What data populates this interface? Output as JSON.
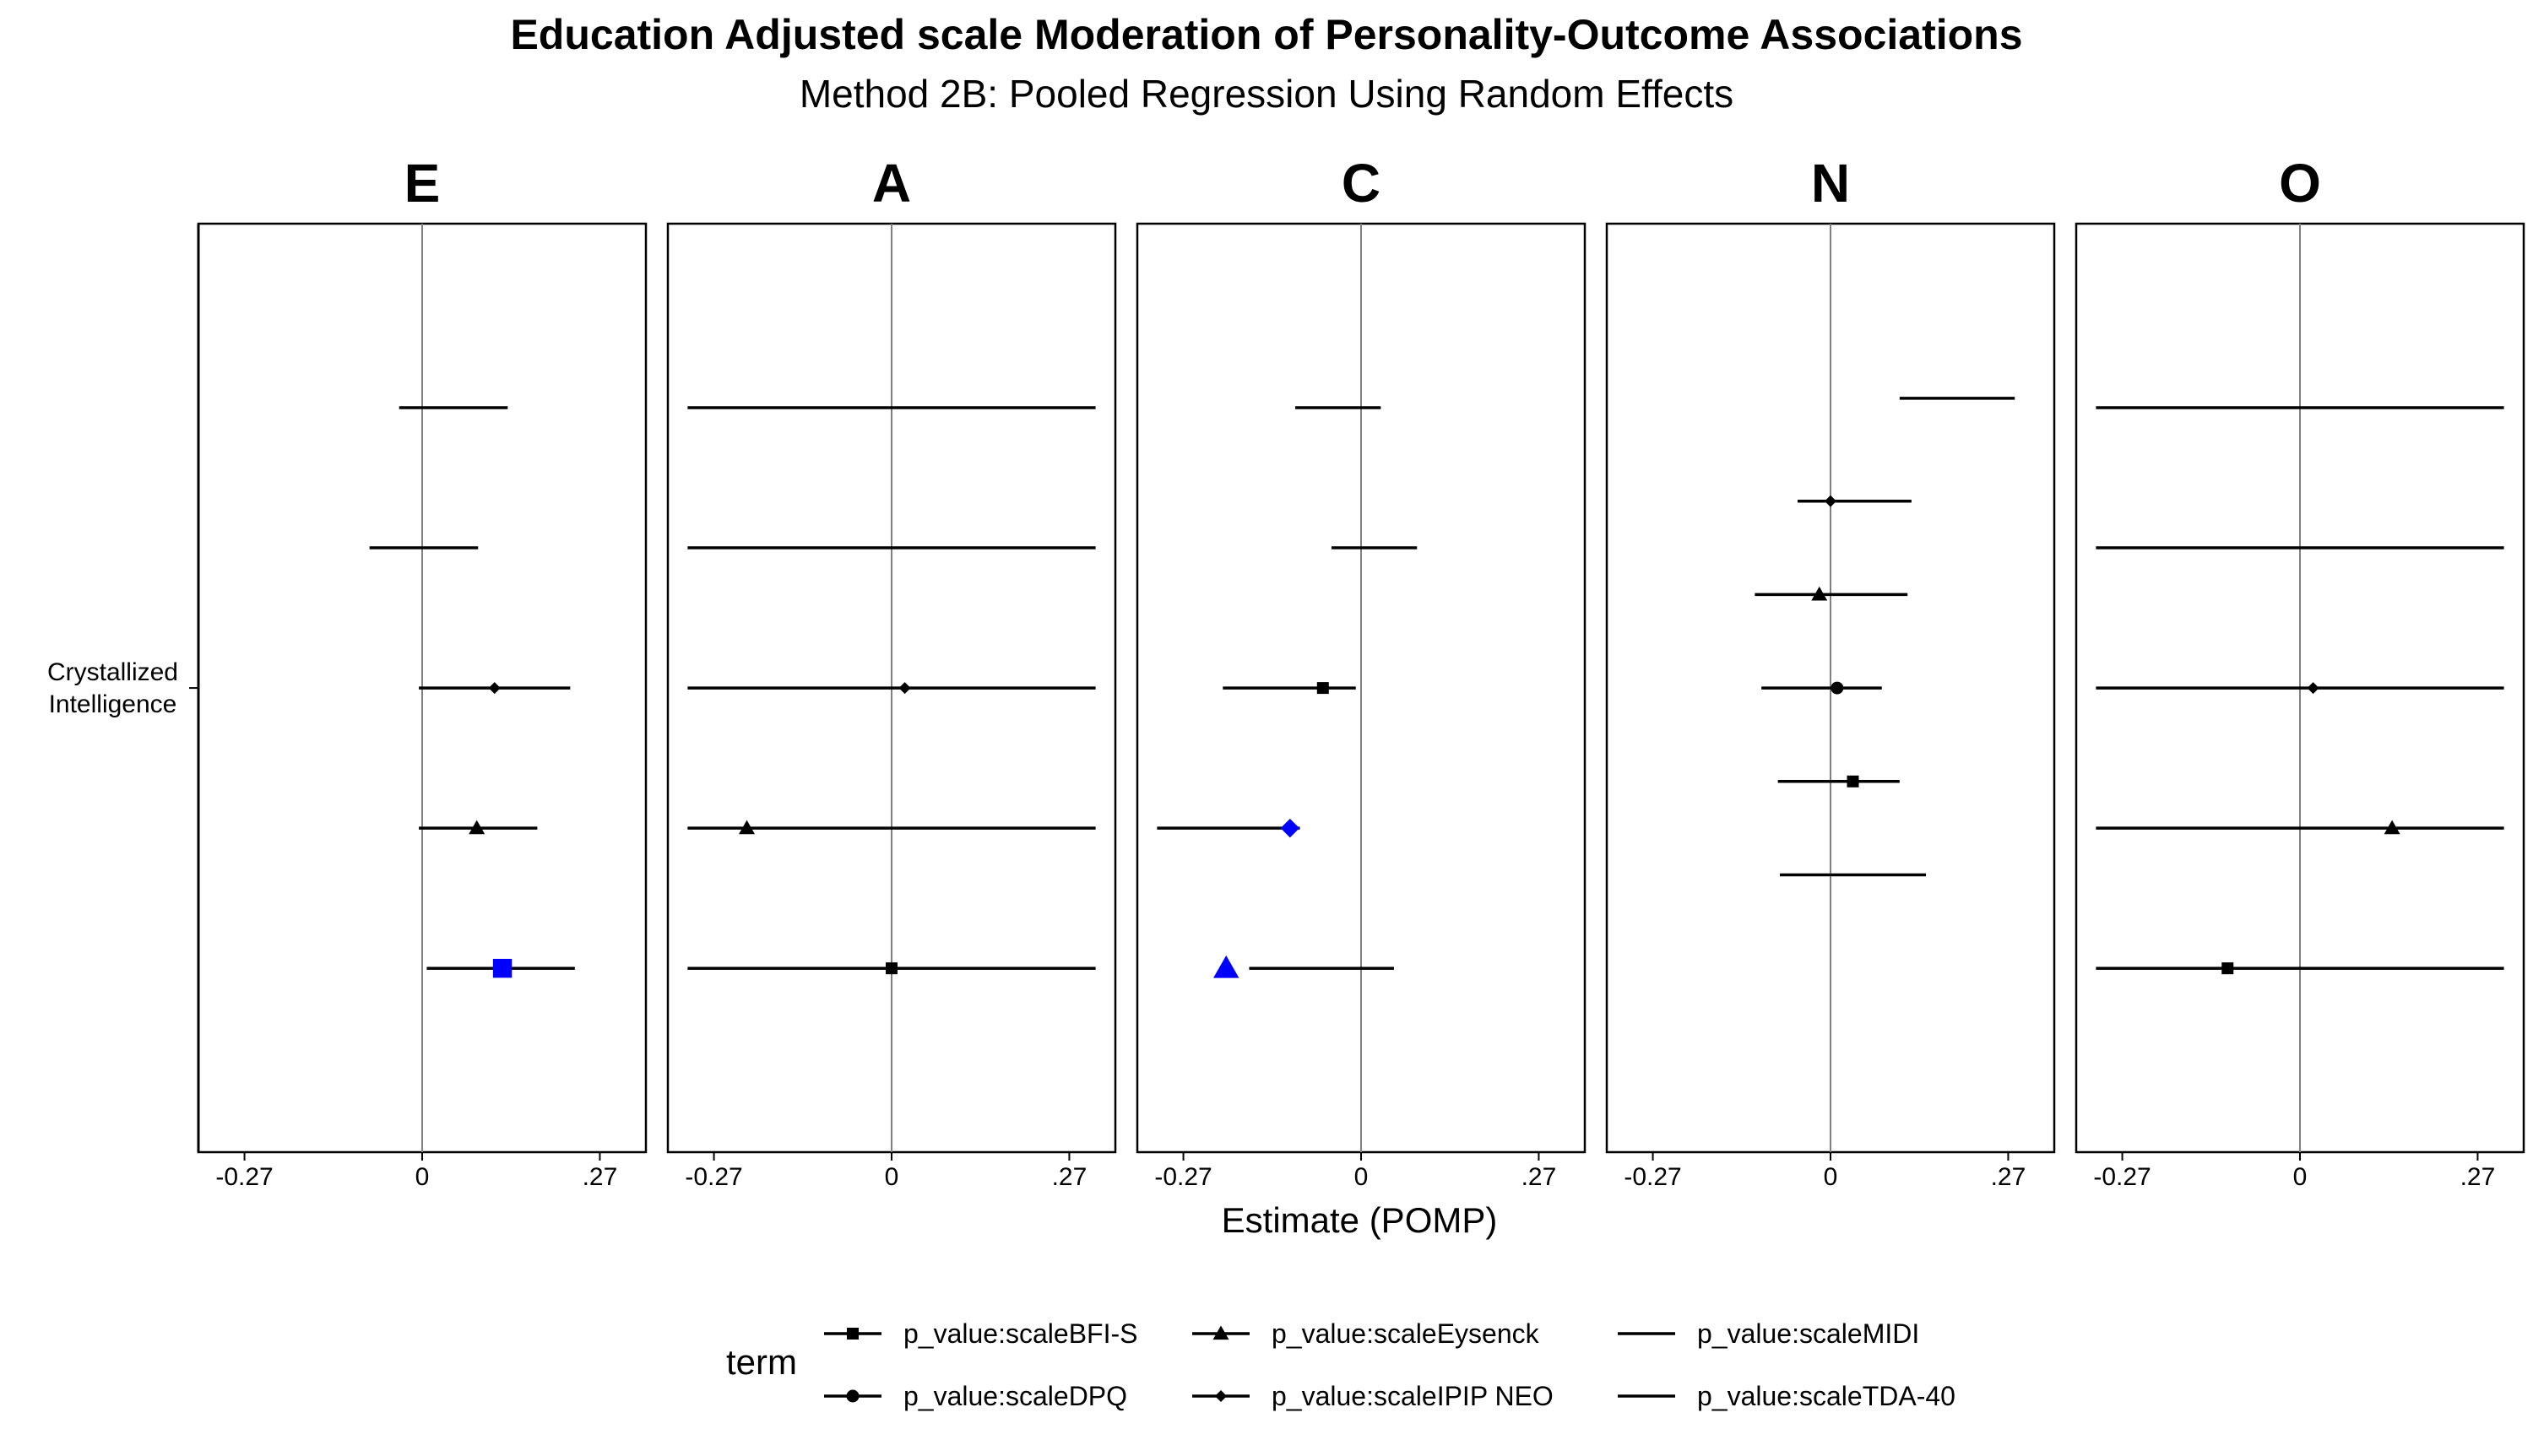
{
  "title": "Education Adjusted scale Moderation of Personality-Outcome Associations",
  "subtitle": "Method 2B: Pooled Regression Using Random Effects",
  "colors": {
    "significant": "#0000ff",
    "default": "#000000",
    "zero_line": "#808080"
  },
  "chart_data": {
    "type": "forest",
    "facets": [
      "E",
      "A",
      "C",
      "N",
      "O"
    ],
    "y_categories": [
      "Crystallized\nIntelligence"
    ],
    "xlabel": "Estimate (POMP)",
    "xticks": [
      -0.27,
      0,
      0.27
    ],
    "xtick_labels": [
      "-0.27",
      "0",
      ".27"
    ],
    "xlim": [
      -0.34,
      0.34
    ],
    "legend": {
      "title": "term",
      "entries": [
        {
          "label": "p_value:scaleBFI-S",
          "shape": "square"
        },
        {
          "label": "p_value:scaleDPQ",
          "shape": "circle"
        },
        {
          "label": "p_value:scaleEysenck",
          "shape": "triangle"
        },
        {
          "label": "p_value:scaleIPIP NEO",
          "shape": "diamond"
        },
        {
          "label": "p_value:scaleMIDI",
          "shape": "none"
        },
        {
          "label": "p_value:scaleTDA-40",
          "shape": "none"
        }
      ]
    },
    "panels": [
      {
        "facet": "E",
        "terms": [
          {
            "slot": 0.0,
            "estimate": null,
            "lower": -0.035,
            "upper": 0.13,
            "shape": "none",
            "significant": false
          },
          {
            "slot": 1.5,
            "estimate": null,
            "lower": -0.08,
            "upper": 0.085,
            "shape": "none",
            "significant": false
          },
          {
            "slot": 3.0,
            "estimate": 0.11,
            "lower": -0.005,
            "upper": 0.225,
            "shape": "diamond",
            "significant": false
          },
          {
            "slot": 4.5,
            "estimate": 0.083,
            "lower": -0.005,
            "upper": 0.175,
            "shape": "triangle",
            "significant": false
          },
          {
            "slot": 6.0,
            "estimate": 0.122,
            "lower": 0.007,
            "upper": 0.232,
            "shape": "square",
            "significant": true
          }
        ]
      },
      {
        "facet": "A",
        "terms": [
          {
            "slot": 0.0,
            "estimate": null,
            "lower": -0.31,
            "upper": 0.31,
            "shape": "none",
            "significant": false
          },
          {
            "slot": 1.5,
            "estimate": null,
            "lower": -0.31,
            "upper": 0.31,
            "shape": "none",
            "significant": false
          },
          {
            "slot": 3.0,
            "estimate": 0.02,
            "lower": -0.31,
            "upper": 0.31,
            "shape": "diamond",
            "significant": false
          },
          {
            "slot": 4.5,
            "estimate": -0.22,
            "lower": -0.31,
            "upper": 0.31,
            "shape": "triangle",
            "significant": false
          },
          {
            "slot": 6.0,
            "estimate": 0.0,
            "lower": -0.31,
            "upper": 0.31,
            "shape": "square",
            "significant": false
          }
        ]
      },
      {
        "facet": "C",
        "terms": [
          {
            "slot": 0.0,
            "estimate": null,
            "lower": -0.1,
            "upper": 0.03,
            "shape": "none",
            "significant": false
          },
          {
            "slot": 1.5,
            "estimate": null,
            "lower": -0.045,
            "upper": 0.085,
            "shape": "none",
            "significant": false
          },
          {
            "slot": 3.0,
            "estimate": -0.058,
            "lower": -0.21,
            "upper": -0.008,
            "shape": "square",
            "significant": false
          },
          {
            "slot": 4.5,
            "estimate": -0.108,
            "lower": -0.31,
            "upper": -0.093,
            "shape": "diamond",
            "significant": true
          },
          {
            "slot": 6.0,
            "estimate": -0.205,
            "lower": -0.17,
            "upper": 0.05,
            "shape": "triangle",
            "significant": true
          }
        ]
      },
      {
        "facet": "N",
        "terms": [
          {
            "slot": -0.1,
            "estimate": null,
            "lower": 0.105,
            "upper": 0.28,
            "shape": "none",
            "significant": false
          },
          {
            "slot": 1.0,
            "estimate": 0.0,
            "lower": -0.05,
            "upper": 0.123,
            "shape": "diamond",
            "significant": false
          },
          {
            "slot": 2.0,
            "estimate": -0.017,
            "lower": -0.115,
            "upper": 0.117,
            "shape": "triangle",
            "significant": false
          },
          {
            "slot": 3.0,
            "estimate": 0.01,
            "lower": -0.105,
            "upper": 0.078,
            "shape": "circle",
            "significant": false
          },
          {
            "slot": 4.0,
            "estimate": 0.034,
            "lower": -0.08,
            "upper": 0.105,
            "shape": "square",
            "significant": false
          },
          {
            "slot": 5.0,
            "estimate": null,
            "lower": -0.077,
            "upper": 0.145,
            "shape": "none",
            "significant": false
          }
        ]
      },
      {
        "facet": "O",
        "terms": [
          {
            "slot": 0.0,
            "estimate": null,
            "lower": -0.31,
            "upper": 0.31,
            "shape": "none",
            "significant": false
          },
          {
            "slot": 1.5,
            "estimate": null,
            "lower": -0.31,
            "upper": 0.31,
            "shape": "none",
            "significant": false
          },
          {
            "slot": 3.0,
            "estimate": 0.02,
            "lower": -0.31,
            "upper": 0.31,
            "shape": "diamond",
            "significant": false
          },
          {
            "slot": 4.5,
            "estimate": 0.14,
            "lower": -0.31,
            "upper": 0.31,
            "shape": "triangle",
            "significant": false
          },
          {
            "slot": 6.0,
            "estimate": -0.11,
            "lower": -0.31,
            "upper": 0.31,
            "shape": "square",
            "significant": false
          }
        ]
      }
    ]
  }
}
